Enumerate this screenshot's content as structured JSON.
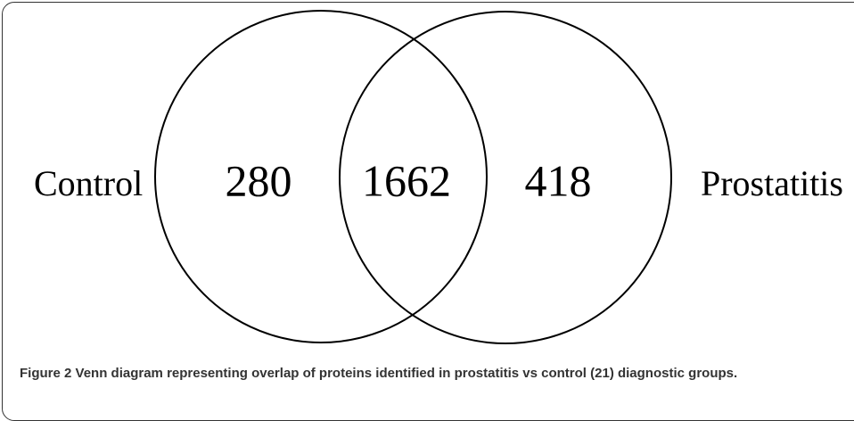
{
  "figure": {
    "label": "Figure 2",
    "caption": "Venn diagram representing overlap of proteins identified in prostatitis vs control (21) diagnostic groups.",
    "sets": [
      {
        "label": "Control"
      },
      {
        "label": "Prostatitis"
      }
    ],
    "regions": {
      "control_only": 280,
      "both": 1662,
      "prostatitis_only": 418
    }
  }
}
